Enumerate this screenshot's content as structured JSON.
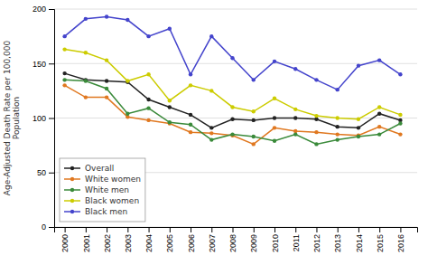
{
  "chart_data": {
    "type": "line",
    "ylabel": "Age-Adjusted Death Rate per 100,000\nPopulation",
    "x": [
      2000,
      2001,
      2002,
      2003,
      2004,
      2005,
      2006,
      2007,
      2008,
      2009,
      2010,
      2011,
      2012,
      2013,
      2014,
      2015,
      2016
    ],
    "series": [
      {
        "name": "Overall",
        "color": "#222222",
        "values": [
          141,
          135,
          134,
          133,
          117,
          110,
          103,
          91,
          99,
          98,
          100,
          100,
          99,
          92,
          91,
          104,
          98
        ]
      },
      {
        "name": "White women",
        "color": "#e07820",
        "values": [
          130,
          119,
          119,
          101,
          98,
          95,
          87,
          86,
          84,
          76,
          91,
          88,
          87,
          85,
          84,
          92,
          85
        ]
      },
      {
        "name": "White men",
        "color": "#3a8a3a",
        "values": [
          135,
          134,
          127,
          104,
          109,
          96,
          94,
          80,
          85,
          83,
          79,
          85,
          76,
          80,
          83,
          85,
          95
        ]
      },
      {
        "name": "Black women",
        "color": "#cccc00",
        "values": [
          163,
          160,
          153,
          134,
          140,
          116,
          130,
          125,
          110,
          106,
          118,
          108,
          102,
          100,
          99,
          110,
          103
        ]
      },
      {
        "name": "Black men",
        "color": "#4444cc",
        "values": [
          175,
          191,
          193,
          190,
          175,
          182,
          140,
          175,
          155,
          135,
          152,
          145,
          135,
          126,
          148,
          153,
          140
        ]
      }
    ],
    "xlim": [
      1999.5,
      2016.8
    ],
    "xticks": [
      2000,
      2001,
      2002,
      2003,
      2004,
      2005,
      2006,
      2007,
      2008,
      2009,
      2010,
      2011,
      2012,
      2013,
      2014,
      2015,
      2016
    ],
    "ylim": [
      0,
      200
    ],
    "yticks": [
      0,
      50,
      100,
      150,
      200
    ],
    "grid": true,
    "legend": "lower left",
    "marker": "circle"
  }
}
